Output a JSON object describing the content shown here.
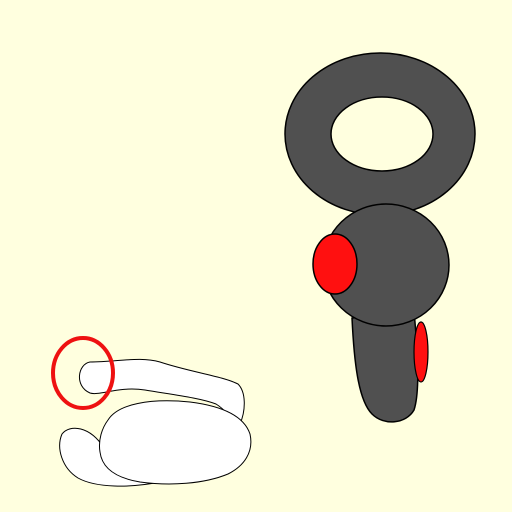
{
  "scene": {
    "background": "#ffffdf",
    "objects": [
      {
        "name": "vr-controller",
        "body_color": "#505050",
        "ring_hole_color": "#ffffdf",
        "button_color": "#ff1010",
        "stroke_color": "#000000"
      },
      {
        "name": "hand-outline",
        "fill_color": "#ffffff",
        "stroke_color": "#000000"
      },
      {
        "name": "highlight-circle",
        "stroke_color": "#ee1111"
      }
    ]
  }
}
